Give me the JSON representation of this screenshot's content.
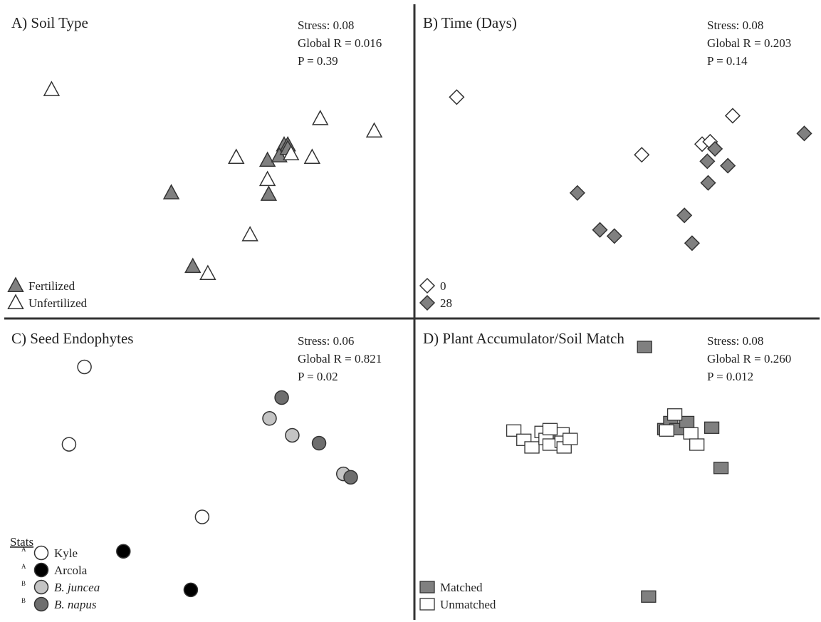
{
  "colors": {
    "fertilized": "#808080",
    "unfertilized": "#ffffff",
    "day0": "#ffffff",
    "day28": "#808080",
    "kyle": "#ffffff",
    "arcola": "#000000",
    "b_juncea": "#c4c4c4",
    "b_napus": "#6e6e6e",
    "matched": "#808080",
    "unmatched": "#ffffff",
    "stroke": "#333333",
    "divider": "#333333"
  },
  "chart_data": [
    {
      "type": "scatter",
      "title": "A) Soil Type",
      "stats": [
        "Stress: 0.08",
        "Global R = 0.016",
        "P = 0.39"
      ],
      "marker": "triangle",
      "xlim": [
        0,
        1
      ],
      "ylim": [
        0,
        1
      ],
      "legend_placement": "bottom-left",
      "legend_header": "",
      "series": [
        {
          "name": "Fertilized",
          "color_key": "fertilized",
          "sup": "",
          "italic": false,
          "points": [
            [
              0.408,
              0.403
            ],
            [
              0.461,
              0.154
            ],
            [
              0.648,
              0.398
            ],
            [
              0.686,
              0.565
            ],
            [
              0.695,
              0.565
            ],
            [
              0.645,
              0.513
            ],
            [
              0.674,
              0.528
            ],
            [
              0.695,
              0.553
            ]
          ]
        },
        {
          "name": "Unfertilized",
          "color_key": "unfertilized",
          "sup": "",
          "italic": false,
          "points": [
            [
              0.113,
              0.752
            ],
            [
              0.498,
              0.13
            ],
            [
              0.602,
              0.261
            ],
            [
              0.645,
              0.448
            ],
            [
              0.568,
              0.523
            ],
            [
              0.703,
              0.535
            ],
            [
              0.755,
              0.523
            ],
            [
              0.775,
              0.654
            ],
            [
              0.908,
              0.612
            ]
          ]
        }
      ]
    },
    {
      "type": "scatter",
      "title": "B) Time (Days)",
      "stats": [
        "Stress: 0.08",
        "Global R = 0.203",
        "P = 0.14"
      ],
      "marker": "diamond",
      "xlim": [
        0,
        1
      ],
      "ylim": [
        0,
        1
      ],
      "legend_placement": "bottom-left",
      "legend_header": "",
      "series": [
        {
          "name": "0",
          "color_key": "day0",
          "sup": "",
          "italic": false,
          "points": [
            [
              0.098,
              0.727
            ],
            [
              0.558,
              0.532
            ],
            [
              0.708,
              0.568
            ],
            [
              0.728,
              0.576
            ],
            [
              0.784,
              0.664
            ]
          ]
        },
        {
          "name": "28",
          "color_key": "day28",
          "sup": "",
          "italic": false,
          "points": [
            [
              0.398,
              0.403
            ],
            [
              0.454,
              0.278
            ],
            [
              0.49,
              0.257
            ],
            [
              0.664,
              0.327
            ],
            [
              0.723,
              0.437
            ],
            [
              0.721,
              0.51
            ],
            [
              0.74,
              0.552
            ],
            [
              0.772,
              0.495
            ],
            [
              0.683,
              0.233
            ],
            [
              0.962,
              0.604
            ]
          ]
        }
      ]
    },
    {
      "type": "scatter",
      "title": "C) Seed Endophytes",
      "stats": [
        "Stress: 0.06",
        "Global R = 0.821",
        "P = 0.02"
      ],
      "marker": "circle",
      "xlim": [
        0,
        1
      ],
      "ylim": [
        0,
        1
      ],
      "legend_placement": "bottom-left",
      "legend_header": "Stats",
      "series": [
        {
          "name": "Kyle",
          "color_key": "kyle",
          "sup": "A",
          "italic": false,
          "points": [
            [
              0.194,
              0.876
            ],
            [
              0.156,
              0.601
            ],
            [
              0.484,
              0.343
            ]
          ]
        },
        {
          "name": "Arcola",
          "color_key": "arcola",
          "sup": "A",
          "italic": false,
          "points": [
            [
              0.29,
              0.221
            ],
            [
              0.456,
              0.084
            ]
          ]
        },
        {
          "name": "B. juncea",
          "color_key": "b_juncea",
          "sup": "B",
          "italic": true,
          "points": [
            [
              0.65,
              0.693
            ],
            [
              0.706,
              0.633
            ],
            [
              0.832,
              0.496
            ]
          ]
        },
        {
          "name": "B. napus",
          "color_key": "b_napus",
          "sup": "B",
          "italic": true,
          "points": [
            [
              0.68,
              0.767
            ],
            [
              0.772,
              0.605
            ],
            [
              0.85,
              0.484
            ]
          ]
        }
      ]
    },
    {
      "type": "scatter",
      "title": "D) Plant Accumulator/Soil Match",
      "stats": [
        "Stress: 0.08",
        "Global R = 0.260",
        "P = 0.012"
      ],
      "marker": "square",
      "xlim": [
        0,
        1
      ],
      "ylim": [
        0,
        1
      ],
      "legend_placement": "bottom-left",
      "legend_header": "",
      "series": [
        {
          "name": "Matched",
          "color_key": "matched",
          "sup": "",
          "italic": false,
          "points": [
            [
              0.565,
              0.947
            ],
            [
              0.615,
              0.655
            ],
            [
              0.63,
              0.68
            ],
            [
              0.645,
              0.655
            ],
            [
              0.67,
              0.68
            ],
            [
              0.732,
              0.66
            ],
            [
              0.755,
              0.517
            ],
            [
              0.575,
              0.06
            ],
            [
              0.345,
              0.62
            ]
          ]
        },
        {
          "name": "Unmatched",
          "color_key": "unmatched",
          "sup": "",
          "italic": false,
          "points": [
            [
              0.24,
              0.65
            ],
            [
              0.265,
              0.617
            ],
            [
              0.285,
              0.59
            ],
            [
              0.31,
              0.645
            ],
            [
              0.32,
              0.62
            ],
            [
              0.33,
              0.6
            ],
            [
              0.36,
              0.64
            ],
            [
              0.36,
              0.61
            ],
            [
              0.365,
              0.59
            ],
            [
              0.38,
              0.62
            ],
            [
              0.33,
              0.655
            ],
            [
              0.64,
              0.707
            ],
            [
              0.68,
              0.64
            ],
            [
              0.695,
              0.6
            ],
            [
              0.62,
              0.65
            ]
          ]
        }
      ]
    }
  ]
}
